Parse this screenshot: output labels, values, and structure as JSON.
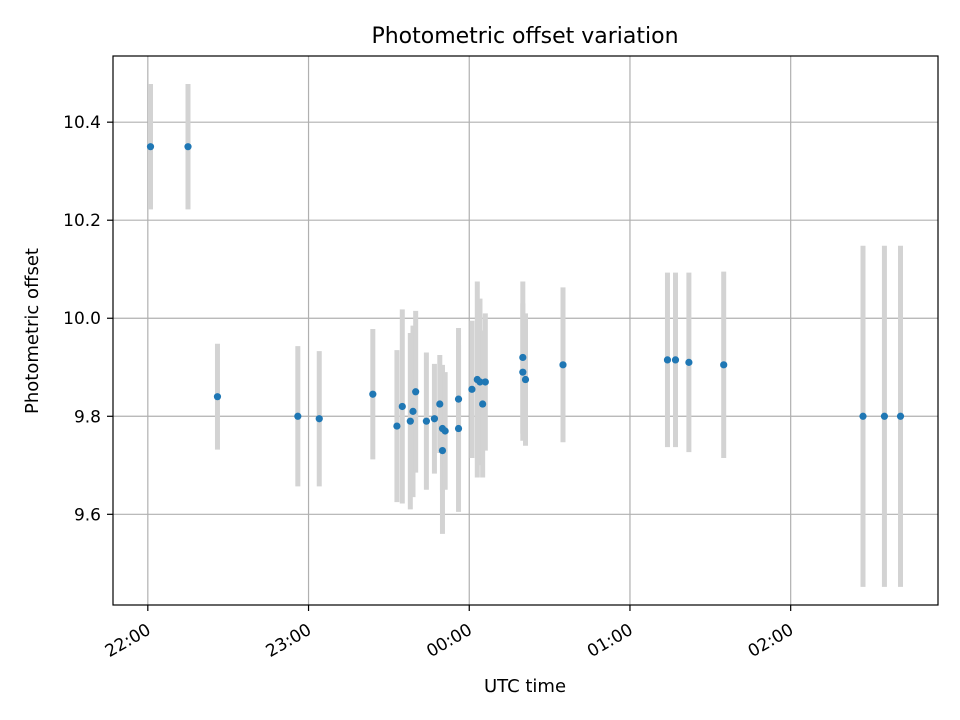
{
  "chart_data": {
    "type": "scatter",
    "title": "Photometric offset variation",
    "xlabel": "UTC time",
    "ylabel": "Photometric offset",
    "xlim": [
      "21:47",
      "02:55"
    ],
    "ylim": [
      9.415,
      10.535
    ],
    "x_ticks": [
      "22:00",
      "23:00",
      "00:00",
      "01:00",
      "02:00"
    ],
    "y_ticks": [
      9.6,
      9.8,
      10.0,
      10.2,
      10.4
    ],
    "grid": true,
    "marker_color": "#1f77b4",
    "errorbar_color": "#d3d3d3",
    "points": [
      {
        "x": "22:01",
        "y": 10.35,
        "err": 0.128
      },
      {
        "x": "22:15",
        "y": 10.35,
        "err": 0.128
      },
      {
        "x": "22:26",
        "y": 9.84,
        "err": 0.108
      },
      {
        "x": "22:56",
        "y": 9.8,
        "err": 0.143
      },
      {
        "x": "23:04",
        "y": 9.795,
        "err": 0.138
      },
      {
        "x": "23:24",
        "y": 9.845,
        "err": 0.133
      },
      {
        "x": "23:33",
        "y": 9.78,
        "err": 0.155
      },
      {
        "x": "23:35",
        "y": 9.82,
        "err": 0.198
      },
      {
        "x": "23:38",
        "y": 9.79,
        "err": 0.18
      },
      {
        "x": "23:39",
        "y": 9.81,
        "err": 0.175
      },
      {
        "x": "23:40",
        "y": 9.85,
        "err": 0.165
      },
      {
        "x": "23:44",
        "y": 9.79,
        "err": 0.14
      },
      {
        "x": "23:47",
        "y": 9.795,
        "err": 0.112
      },
      {
        "x": "23:49",
        "y": 9.825,
        "err": 0.1
      },
      {
        "x": "23:50",
        "y": 9.775,
        "err": 0.13
      },
      {
        "x": "23:50",
        "y": 9.73,
        "err": 0.17
      },
      {
        "x": "23:51",
        "y": 9.77,
        "err": 0.12
      },
      {
        "x": "23:56",
        "y": 9.775,
        "err": 0.17
      },
      {
        "x": "23:56",
        "y": 9.835,
        "err": 0.145
      },
      {
        "x": "00:01",
        "y": 9.855,
        "err": 0.14
      },
      {
        "x": "00:03",
        "y": 9.875,
        "err": 0.2
      },
      {
        "x": "00:04",
        "y": 9.87,
        "err": 0.17
      },
      {
        "x": "00:05",
        "y": 9.825,
        "err": 0.15
      },
      {
        "x": "00:06",
        "y": 9.87,
        "err": 0.14
      },
      {
        "x": "00:20",
        "y": 9.89,
        "err": 0.14
      },
      {
        "x": "00:20",
        "y": 9.92,
        "err": 0.155
      },
      {
        "x": "00:21",
        "y": 9.875,
        "err": 0.135
      },
      {
        "x": "00:35",
        "y": 9.905,
        "err": 0.158
      },
      {
        "x": "01:14",
        "y": 9.915,
        "err": 0.178
      },
      {
        "x": "01:17",
        "y": 9.915,
        "err": 0.178
      },
      {
        "x": "01:22",
        "y": 9.91,
        "err": 0.183
      },
      {
        "x": "01:35",
        "y": 9.905,
        "err": 0.19
      },
      {
        "x": "02:27",
        "y": 9.8,
        "err": 0.348
      },
      {
        "x": "02:35",
        "y": 9.8,
        "err": 0.348
      },
      {
        "x": "02:41",
        "y": 9.8,
        "err": 0.348
      }
    ]
  }
}
